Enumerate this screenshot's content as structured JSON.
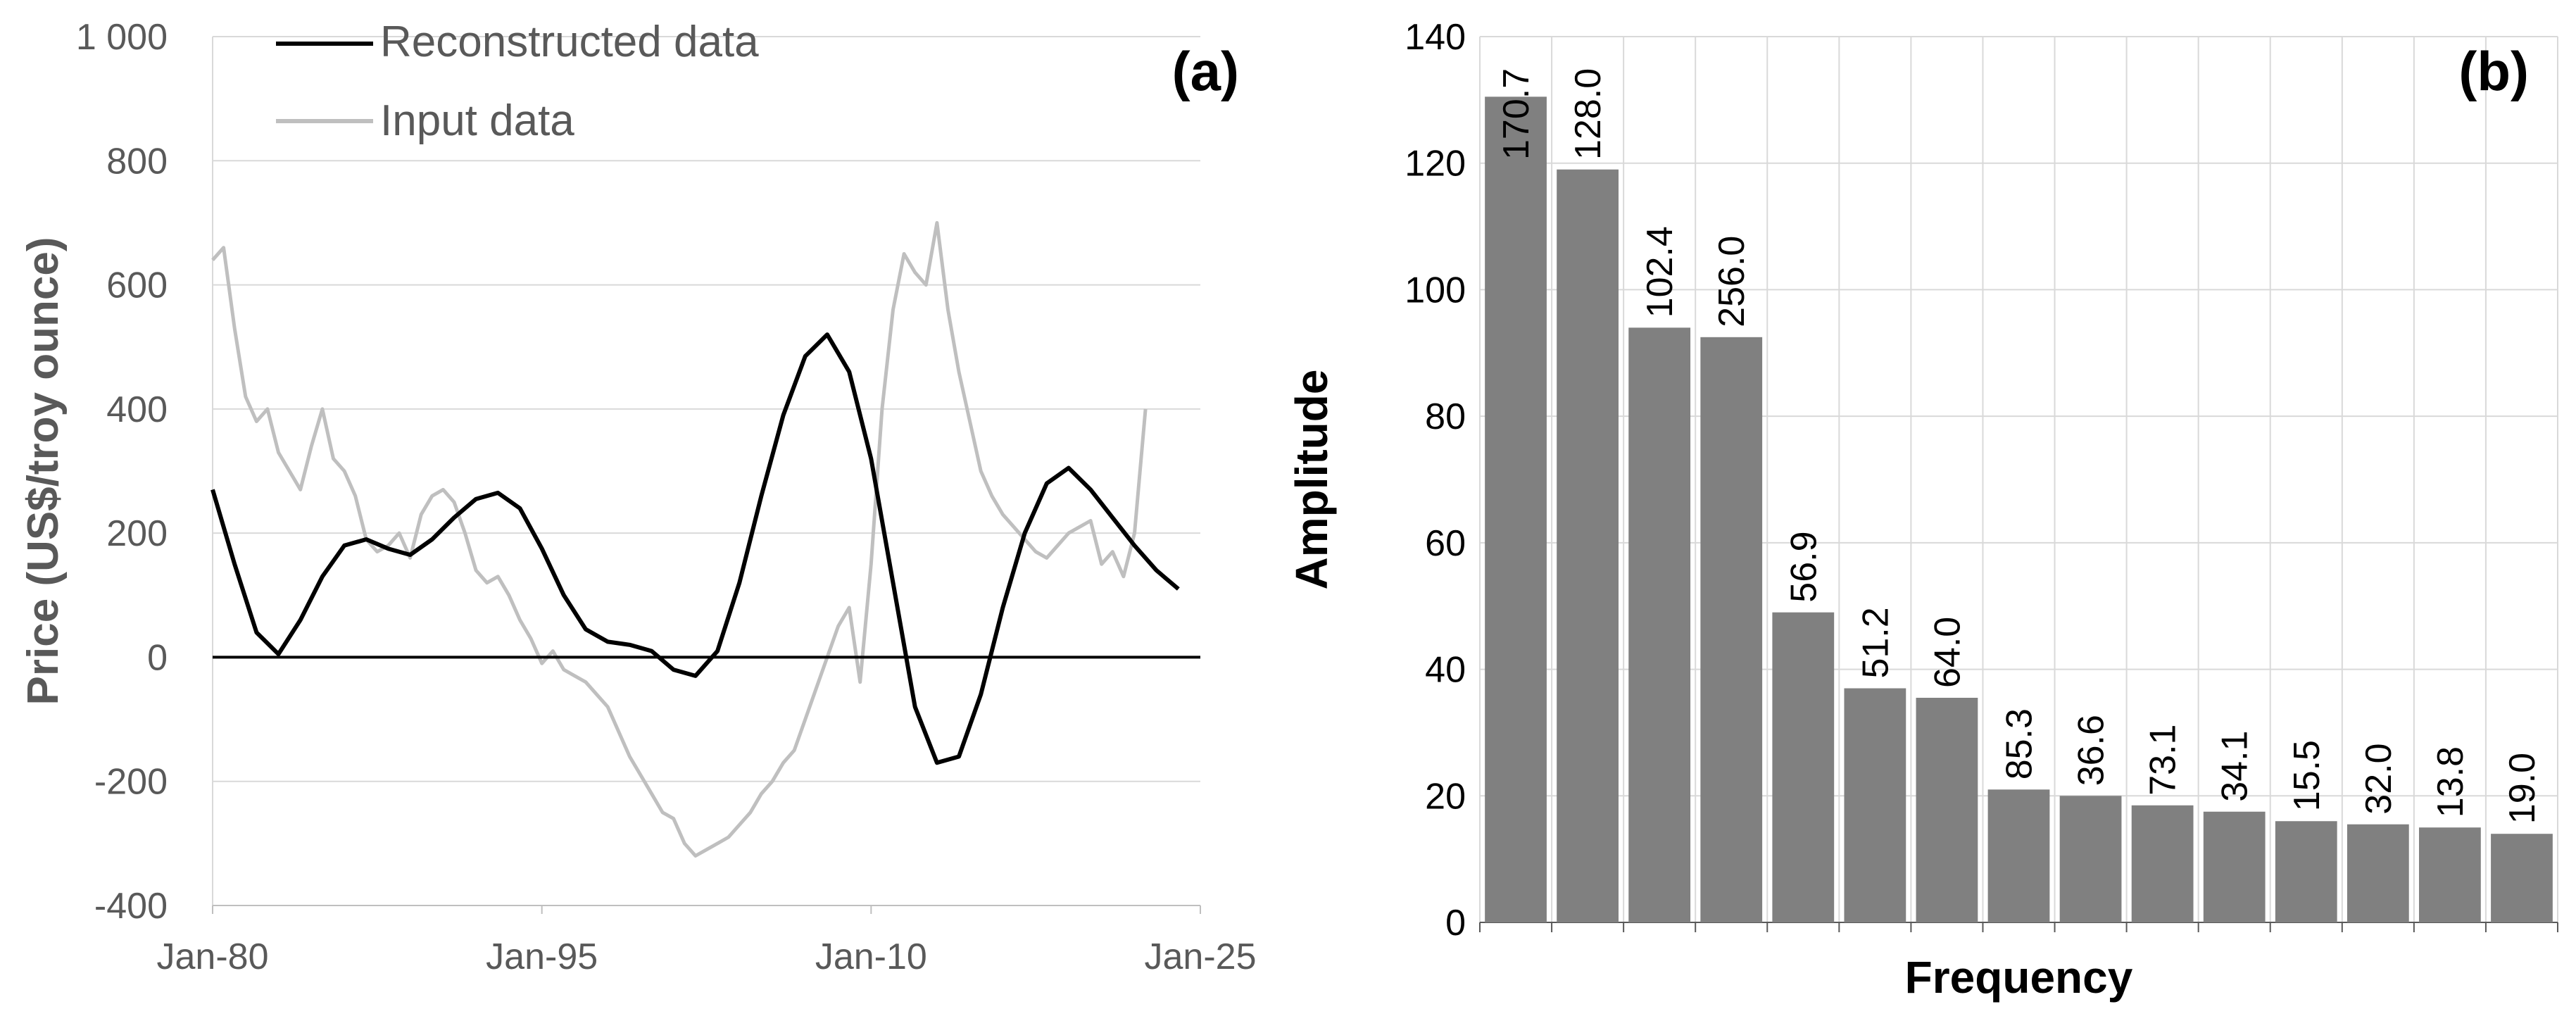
{
  "chart_data": [
    {
      "type": "line",
      "panel_label": "(a)",
      "ylabel": "Price (US$/troy ounce)",
      "xlabel": "",
      "ylim": [
        -400,
        1000
      ],
      "yticks": [
        -400,
        -200,
        0,
        200,
        400,
        600,
        800,
        1000
      ],
      "ytick_labels": [
        "-400",
        "-200",
        "0",
        "200",
        "400",
        "600",
        "800",
        "1 000"
      ],
      "xlim": [
        1980,
        2025
      ],
      "xticks": [
        1980,
        1995,
        2010,
        2025
      ],
      "xtick_labels": [
        "Jan-80",
        "Jan-95",
        "Jan-10",
        "Jan-25"
      ],
      "grid": "horizontal",
      "legend_position": "top-left",
      "colors": {
        "reconstructed": "#000000",
        "input": "#bfbfbf",
        "zero_line": "#000000"
      },
      "series": [
        {
          "name": "Reconstructed data",
          "x": [
            1980.0,
            1981.0,
            1982.0,
            1983.0,
            1984.0,
            1985.0,
            1986.0,
            1987.0,
            1988.0,
            1989.0,
            1990.0,
            1991.0,
            1992.0,
            1993.0,
            1994.0,
            1995.0,
            1996.0,
            1997.0,
            1998.0,
            1999.0,
            2000.0,
            2001.0,
            2002.0,
            2003.0,
            2004.0,
            2005.0,
            2006.0,
            2007.0,
            2008.0,
            2009.0,
            2010.0,
            2011.0,
            2012.0,
            2013.0,
            2014.0,
            2015.0,
            2016.0,
            2017.0,
            2018.0,
            2019.0,
            2020.0,
            2021.0,
            2022.0,
            2023.0,
            2024.0
          ],
          "y": [
            270,
            150,
            40,
            5,
            60,
            130,
            180,
            190,
            175,
            165,
            190,
            225,
            255,
            265,
            240,
            175,
            100,
            45,
            25,
            20,
            10,
            -20,
            -30,
            10,
            120,
            260,
            390,
            485,
            520,
            460,
            320,
            120,
            -80,
            -170,
            -160,
            -60,
            80,
            200,
            280,
            305,
            270,
            225,
            180,
            140,
            110
          ]
        },
        {
          "name": "Input data",
          "x": [
            1980.0,
            1980.5,
            1981.0,
            1981.5,
            1982.0,
            1982.5,
            1983.0,
            1983.5,
            1984.0,
            1984.5,
            1985.0,
            1985.5,
            1986.0,
            1986.5,
            1987.0,
            1987.5,
            1988.0,
            1988.5,
            1989.0,
            1989.5,
            1990.0,
            1990.5,
            1991.0,
            1991.5,
            1992.0,
            1992.5,
            1993.0,
            1993.5,
            1994.0,
            1994.5,
            1995.0,
            1995.5,
            1996.0,
            1996.5,
            1997.0,
            1997.5,
            1998.0,
            1998.5,
            1999.0,
            1999.5,
            2000.0,
            2000.5,
            2001.0,
            2001.5,
            2002.0,
            2002.5,
            2003.0,
            2003.5,
            2004.0,
            2004.5,
            2005.0,
            2005.5,
            2006.0,
            2006.5,
            2007.0,
            2007.5,
            2008.0,
            2008.5,
            2009.0,
            2009.5,
            2010.0,
            2010.5,
            2011.0,
            2011.5,
            2012.0,
            2012.5,
            2013.0,
            2013.5,
            2014.0,
            2014.5,
            2015.0,
            2015.5,
            2016.0,
            2016.5,
            2017.0,
            2017.5,
            2018.0,
            2018.5,
            2019.0,
            2019.5,
            2020.0,
            2020.5,
            2021.0,
            2021.5,
            2022.0,
            2022.5
          ],
          "y": [
            640,
            660,
            530,
            420,
            380,
            400,
            330,
            300,
            270,
            340,
            400,
            320,
            300,
            260,
            190,
            170,
            180,
            200,
            160,
            230,
            260,
            270,
            250,
            200,
            140,
            120,
            130,
            100,
            60,
            30,
            -10,
            10,
            -20,
            -30,
            -40,
            -60,
            -80,
            -120,
            -160,
            -190,
            -220,
            -250,
            -260,
            -300,
            -320,
            -310,
            -300,
            -290,
            -270,
            -250,
            -220,
            -200,
            -170,
            -150,
            -100,
            -50,
            0,
            50,
            80,
            -40,
            150,
            400,
            560,
            650,
            620,
            600,
            700,
            560,
            460,
            380,
            300,
            260,
            230,
            210,
            190,
            170,
            160,
            180,
            200,
            210,
            220,
            150,
            170,
            130,
            200,
            400
          ]
        }
      ]
    },
    {
      "type": "bar",
      "panel_label": "(b)",
      "xlabel": "Frequency",
      "ylabel": "Amplitude",
      "ylim": [
        0,
        140
      ],
      "yticks": [
        0,
        20,
        40,
        60,
        80,
        100,
        120,
        140
      ],
      "grid": "both",
      "colors": {
        "bar": "#808080"
      },
      "categories": [
        "170.7",
        "128.0",
        "102.4",
        "256.0",
        "56.9",
        "51.2",
        "64.0",
        "85.3",
        "36.6",
        "73.1",
        "34.1",
        "15.5",
        "32.0",
        "13.8",
        "19.0"
      ],
      "values": [
        130.5,
        119.0,
        94.0,
        92.5,
        49.0,
        37.0,
        35.5,
        21.0,
        20.0,
        18.5,
        17.5,
        16.0,
        15.5,
        15.0,
        14.0
      ],
      "data_labels": [
        "170.7",
        "128.0",
        "102.4",
        "256.0",
        "56.9",
        "51.2",
        "64.0",
        "85.3",
        "36.6",
        "73.1",
        "34.1",
        "15.5",
        "32.0",
        "13.8",
        "19.0"
      ]
    }
  ]
}
